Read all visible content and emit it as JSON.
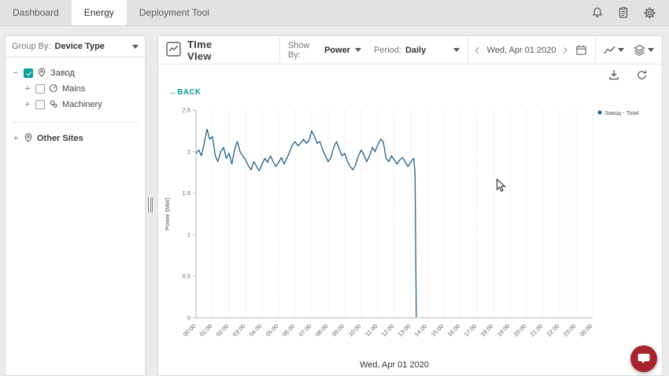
{
  "topnav": {
    "tabs": [
      {
        "label": "Dashboard",
        "active": false
      },
      {
        "label": "Energy",
        "active": true
      },
      {
        "label": "Deployment Tool",
        "active": false
      }
    ]
  },
  "sidebar": {
    "group_by": {
      "label": "Group By:",
      "value": "Device Type"
    },
    "tree": [
      {
        "expander": "−",
        "checked": true,
        "icon": "site-pin-icon",
        "label": "Завод"
      },
      {
        "expander": "+",
        "checked": false,
        "icon": "mains-icon",
        "label": "Mains"
      },
      {
        "expander": "+",
        "checked": false,
        "icon": "machinery-icon",
        "label": "Machinery"
      }
    ],
    "other_sites": {
      "expander": "+",
      "icon": "site-pin-icon",
      "label": "Other Sites"
    }
  },
  "toolbar": {
    "title": "TIme VIew",
    "show_by": {
      "label": "Show By:",
      "value": "Power"
    },
    "period": {
      "label": "Period:",
      "value": "Daily"
    },
    "date_nav": {
      "date": "Wed, Apr 01 2020"
    }
  },
  "chart": {
    "back_label": "←BACK",
    "xaxis_title": "Wed, Apr 01 2020"
  },
  "chart_data": {
    "type": "line",
    "title": "",
    "xlabel": "Wed, Apr 01 2020",
    "ylabel": "Power (MW)",
    "ylim": [
      0,
      2.5
    ],
    "xlim_hours": [
      0,
      24
    ],
    "y_ticks": [
      0,
      0.5,
      1,
      1.5,
      2,
      2.5
    ],
    "x_tick_labels": [
      "00:00",
      "01:00",
      "02:00",
      "03:00",
      "04:00",
      "05:00",
      "06:00",
      "07:00",
      "08:00",
      "09:00",
      "10:00",
      "11:00",
      "12:00",
      "13:00",
      "14:00",
      "15:00",
      "16:00",
      "17:00",
      "18:00",
      "19:00",
      "20:00",
      "21:00",
      "22:00",
      "23:00",
      "00:00"
    ],
    "grid": "vertical-dotted",
    "legend_position": "top-right",
    "legend": [
      {
        "name": "Завод - Total",
        "color": "#1f618d"
      }
    ],
    "series": [
      {
        "name": "Завод - Total",
        "color": "#1f618d",
        "points": [
          [
            0,
            1.98
          ],
          [
            0.17,
            2.02
          ],
          [
            0.33,
            1.95
          ],
          [
            0.5,
            2.1
          ],
          [
            0.67,
            2.27
          ],
          [
            0.83,
            2.15
          ],
          [
            1,
            2.18
          ],
          [
            1.17,
            1.95
          ],
          [
            1.33,
            1.88
          ],
          [
            1.5,
            2.0
          ],
          [
            1.67,
            2.05
          ],
          [
            1.83,
            1.92
          ],
          [
            2,
            1.98
          ],
          [
            2.17,
            1.85
          ],
          [
            2.33,
            2.02
          ],
          [
            2.5,
            2.12
          ],
          [
            2.67,
            2.0
          ],
          [
            2.83,
            1.95
          ],
          [
            3,
            1.9
          ],
          [
            3.17,
            1.83
          ],
          [
            3.33,
            1.78
          ],
          [
            3.5,
            1.88
          ],
          [
            3.67,
            1.82
          ],
          [
            3.83,
            1.77
          ],
          [
            4,
            1.85
          ],
          [
            4.17,
            1.92
          ],
          [
            4.33,
            1.87
          ],
          [
            4.5,
            1.95
          ],
          [
            4.67,
            1.88
          ],
          [
            4.83,
            1.82
          ],
          [
            5,
            1.87
          ],
          [
            5.17,
            1.93
          ],
          [
            5.33,
            1.85
          ],
          [
            5.5,
            1.92
          ],
          [
            5.67,
            2.0
          ],
          [
            5.83,
            2.08
          ],
          [
            6,
            2.12
          ],
          [
            6.17,
            2.07
          ],
          [
            6.33,
            2.1
          ],
          [
            6.5,
            2.15
          ],
          [
            6.67,
            2.1
          ],
          [
            6.83,
            2.13
          ],
          [
            7,
            2.25
          ],
          [
            7.17,
            2.18
          ],
          [
            7.33,
            2.1
          ],
          [
            7.5,
            2.12
          ],
          [
            7.67,
            2.02
          ],
          [
            7.83,
            1.95
          ],
          [
            8,
            1.88
          ],
          [
            8.17,
            1.93
          ],
          [
            8.33,
            2.05
          ],
          [
            8.5,
            2.12
          ],
          [
            8.67,
            2.03
          ],
          [
            8.83,
            1.95
          ],
          [
            9,
            1.98
          ],
          [
            9.17,
            1.88
          ],
          [
            9.33,
            1.82
          ],
          [
            9.5,
            1.78
          ],
          [
            9.67,
            1.85
          ],
          [
            9.83,
            1.95
          ],
          [
            10,
            2.02
          ],
          [
            10.17,
            1.96
          ],
          [
            10.33,
            1.88
          ],
          [
            10.5,
            1.95
          ],
          [
            10.67,
            2.05
          ],
          [
            10.83,
            2.0
          ],
          [
            11,
            2.08
          ],
          [
            11.17,
            2.15
          ],
          [
            11.33,
            2.12
          ],
          [
            11.5,
            1.92
          ],
          [
            11.67,
            1.88
          ],
          [
            11.83,
            1.95
          ],
          [
            12,
            1.9
          ],
          [
            12.17,
            1.85
          ],
          [
            12.33,
            1.9
          ],
          [
            12.5,
            1.93
          ],
          [
            12.67,
            1.87
          ],
          [
            12.83,
            1.82
          ],
          [
            13,
            1.88
          ],
          [
            13.17,
            1.92
          ],
          [
            13.25,
            1.75
          ],
          [
            13.33,
            0.01
          ]
        ]
      }
    ]
  },
  "colors": {
    "accent": "#0b9f9b",
    "series": "#1f618d",
    "chat_button": "#a8232e"
  }
}
